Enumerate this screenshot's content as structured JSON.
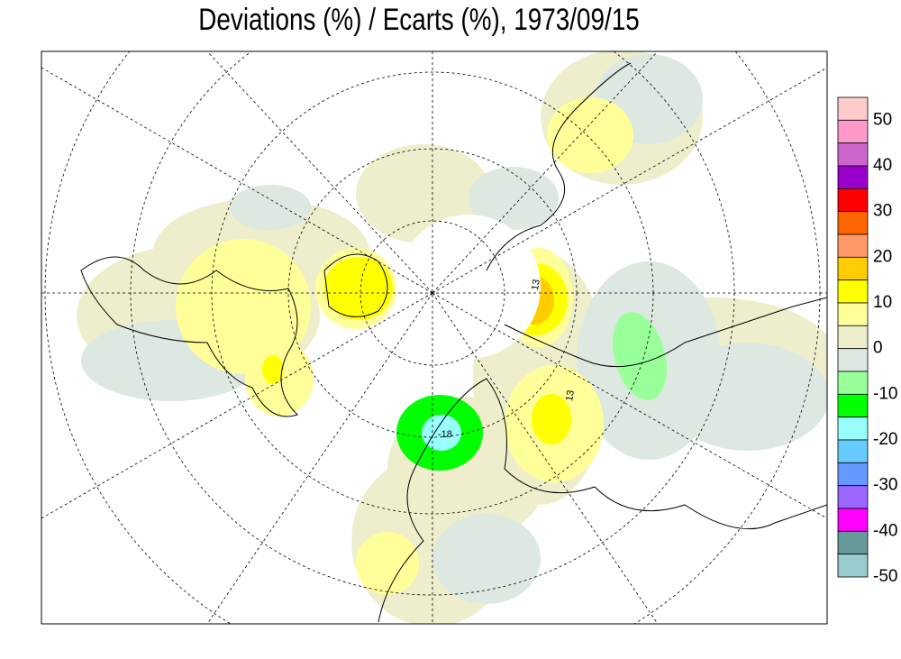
{
  "title": "Deviations (%) / Ecarts (%), 1973/09/15",
  "legend": {
    "colors": [
      "#ffcccc",
      "#ff99cc",
      "#cc66cc",
      "#9900cc",
      "#ff0000",
      "#ff6600",
      "#ff9966",
      "#ffcc00",
      "#ffff00",
      "#ffff99",
      "#eeeecc",
      "#dde8e0",
      "#99ff99",
      "#00ff00",
      "#99ffff",
      "#66ccff",
      "#6699ff",
      "#9966ff",
      "#ff00ff",
      "#669999",
      "#99cccc"
    ],
    "labels": [
      50,
      40,
      30,
      20,
      10,
      0,
      -10,
      -20,
      -30,
      -40,
      -50
    ]
  },
  "annotations": [
    "13",
    "13",
    "-18"
  ]
}
